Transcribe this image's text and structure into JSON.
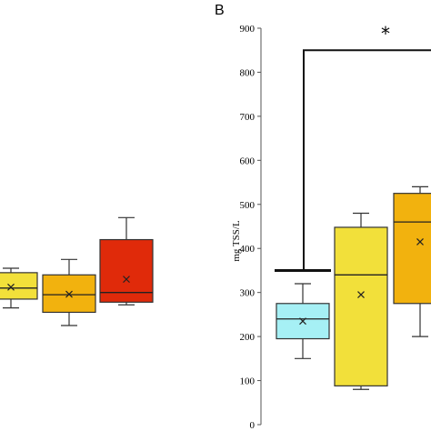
{
  "panel_b_label": "B",
  "significance_marker": "*",
  "chart_data": [
    {
      "type": "box",
      "panel": "A",
      "title": "",
      "xlabel": "",
      "ylabel": "",
      "ylim": [
        0,
        900
      ],
      "series": [
        {
          "color": "#f2e03a",
          "whisker_low": 265,
          "q1": 285,
          "median": 310,
          "q3": 345,
          "whisker_high": 355,
          "mean": 312
        },
        {
          "color": "#f2b20e",
          "whisker_low": 225,
          "q1": 255,
          "median": 295,
          "q3": 340,
          "whisker_high": 375,
          "mean": 296
        },
        {
          "color": "#e02a0a",
          "whisker_low": 272,
          "q1": 278,
          "median": 300,
          "q3": 420,
          "whisker_high": 470,
          "mean": 330
        }
      ]
    },
    {
      "type": "box",
      "panel": "B",
      "title": "",
      "xlabel": "",
      "ylabel": "mg TSS/L",
      "ylim": [
        0,
        900
      ],
      "yticks": [
        0,
        100,
        200,
        300,
        400,
        500,
        600,
        700,
        800,
        900
      ],
      "series": [
        {
          "color": "#a6f0f5",
          "whisker_low": 150,
          "q1": 195,
          "median": 240,
          "q3": 275,
          "whisker_high": 320,
          "mean": 235
        },
        {
          "color": "#f2e03a",
          "whisker_low": 80,
          "q1": 88,
          "median": 340,
          "q3": 448,
          "whisker_high": 480,
          "mean": 295
        },
        {
          "color": "#f2b20e",
          "whisker_low": 200,
          "q1": 275,
          "median": 460,
          "q3": 525,
          "whisker_high": 540,
          "mean": 415
        }
      ],
      "significance": {
        "marker": "*",
        "left_y": 350,
        "top_y": 850
      }
    }
  ]
}
